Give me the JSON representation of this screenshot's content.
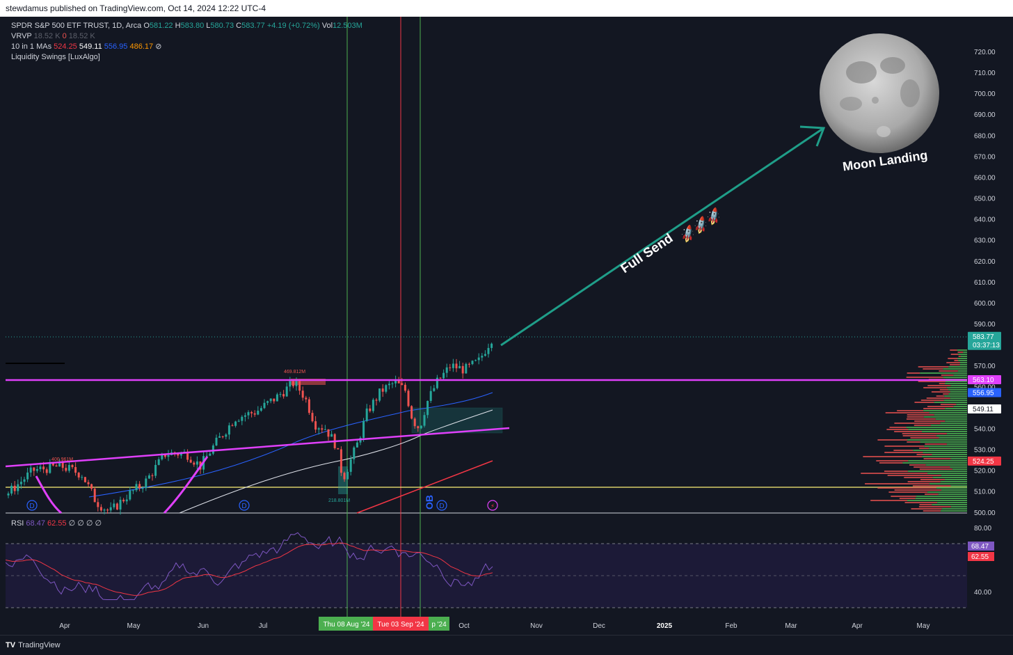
{
  "topbar": {
    "publisher_text": "stewdamus published on TradingView.com, Oct 14, 2024 12:22 UTC-4"
  },
  "legend": {
    "symbol": "SPDR S&P 500 ETF TRUST, 1D, Arca",
    "o_label": "O",
    "o": "581.22",
    "h_label": "H",
    "h": "583.80",
    "l_label": "L",
    "l": "580.73",
    "c_label": "C",
    "c": "583.77",
    "change": "+4.19 (+0.72%)",
    "vol_label": "Vol",
    "vol": "12.503M",
    "vrvp": "VRVP",
    "vrvp_v1": "18.52 K",
    "vrvp_v2": "0",
    "vrvp_v3": "18.52 K",
    "mas": "10 in 1 MAs",
    "ma1": "524.25",
    "ma2": "549.11",
    "ma3": "556.95",
    "ma4": "486.17",
    "ma_icon": "⊘",
    "lux": "Liquidity Swings [LuxAlgo]"
  },
  "currency": "USD",
  "price_axis": {
    "ticks": [
      720,
      710,
      700,
      690,
      680,
      670,
      660,
      650,
      640,
      630,
      620,
      610,
      600,
      590,
      570,
      560,
      540,
      530,
      520,
      510,
      500
    ],
    "tick_labels": [
      "720.00",
      "710.00",
      "700.00",
      "690.00",
      "680.00",
      "670.00",
      "660.00",
      "650.00",
      "640.00",
      "630.00",
      "620.00",
      "610.00",
      "600.00",
      "590.00",
      "570.00",
      "560.00",
      "540.00",
      "530.00",
      "520.00",
      "510.00",
      "500.00"
    ],
    "badges": [
      {
        "value": 583.77,
        "text": "583.77",
        "sub": "03:37:13",
        "color": "#26a69a"
      },
      {
        "value": 563.1,
        "text": "563.10",
        "color": "#e040fb"
      },
      {
        "value": 556.95,
        "text": "556.95",
        "color": "#2962ff"
      },
      {
        "value": 549.11,
        "text": "549.11",
        "color": "#ffffff"
      },
      {
        "value": 524.25,
        "text": "524.25",
        "color": "#f23645"
      }
    ]
  },
  "rsi": {
    "label": "RSI",
    "v1": "68.47",
    "v2": "62.55",
    "icons": "∅ ∅ ∅ ∅",
    "axis_labels": [
      "80.00",
      "40.00"
    ],
    "badges": [
      {
        "text": "68.47",
        "color": "#7e57c2"
      },
      {
        "text": "62.55",
        "color": "#f23645"
      }
    ]
  },
  "time_axis": {
    "labels": [
      "Apr",
      "May",
      "Jun",
      "Jul",
      "Oct",
      "Nov",
      "Dec",
      "2025",
      "Feb",
      "Mar",
      "Apr",
      "May"
    ],
    "markers": [
      {
        "text": "Thu 08 Aug '24",
        "color": "#4caf50"
      },
      {
        "text": "Tue 03 Sep '24",
        "color": "#f23645"
      },
      {
        "text": "p '24",
        "color": "#4caf50"
      }
    ]
  },
  "annotations": {
    "moon": "Moon Landing",
    "full_send": "Full Send",
    "rockets": "🚀🚀🚀",
    "ob": "OB",
    "vol_a": "469.812M",
    "vol_b": "400.961M",
    "vol_c": "218.801M",
    "div_label": "D"
  },
  "footer": {
    "brand": "TradingView",
    "logo": "TV"
  },
  "chart_data": {
    "type": "candlestick",
    "title": "SPDR S&P 500 ETF TRUST, 1D, Arca",
    "x_range": [
      "2024-03-15",
      "2025-05-20"
    ],
    "ylim": [
      500,
      725
    ],
    "last_close": 583.77,
    "horizontal_levels": [
      563.1,
      512
    ],
    "colors": {
      "up": "#26a69a",
      "down": "#ef5350",
      "trendline": "#e040fb",
      "arrow": "#1f9e89"
    }
  }
}
